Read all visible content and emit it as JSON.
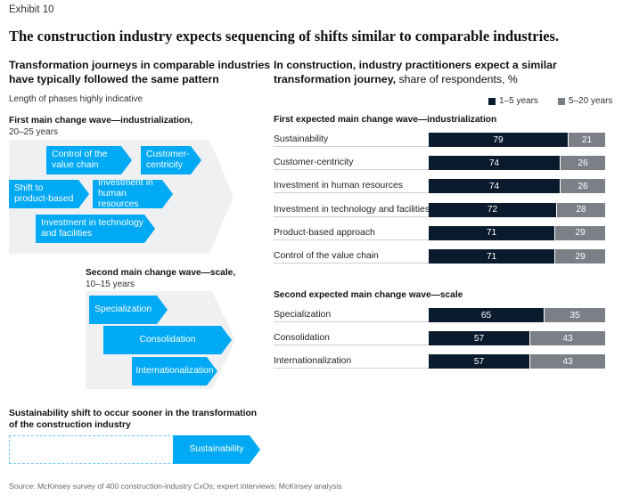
{
  "exhibit_label": "Exhibit 10",
  "headline": "The construction industry expects sequencing of shifts similar to comparable industries.",
  "left": {
    "heading_line1": "Transformation journeys in comparable industries",
    "heading_line2": "have typically followed the same pattern",
    "note": "Length of phases highly indicative",
    "wave1": {
      "title": "First main change wave—industrialization,",
      "subtitle": "20–25 years",
      "items": [
        {
          "line1": "Control of the",
          "line2": "value chain"
        },
        {
          "line1": "Customer-",
          "line2": "centricity"
        },
        {
          "line1": "Shift to",
          "line2": "product-based"
        },
        {
          "line1": "Investment in",
          "line2": "human resources"
        },
        {
          "line1": "Investment in technology",
          "line2": "and facilities"
        }
      ]
    },
    "wave2": {
      "title": "Second main change wave—scale,",
      "subtitle": "10–15 years",
      "items": [
        "Specialization",
        "Consolidation",
        "Internationalization"
      ]
    },
    "sustainability": {
      "heading_line1": "Sustainability shift to occur sooner in the transformation",
      "heading_line2": "of the construction industry",
      "item": "Sustainability"
    }
  },
  "right": {
    "heading_line1": "In construction, industry practitioners expect a similar",
    "heading_line2_bold": "transformation journey,",
    "heading_line2_rest": " share of respondents, %"
  },
  "source": "Source: McKinsey survey of 400 construction-industry CxOs; expert interviews; McKinsey analysis",
  "colors": {
    "accent": "#00a9f4",
    "dark": "#0a1b2e",
    "grey": "#7b8087",
    "chevron_bg": "#eef0f2"
  },
  "chart_data": {
    "type": "bar",
    "orientation": "horizontal",
    "stacked": true,
    "unit": "%",
    "legend": [
      {
        "name": "1–5 years",
        "color": "#0a1b2e"
      },
      {
        "name": "5–20 years",
        "color": "#7b8087"
      }
    ],
    "legend_position": "top-right",
    "groups": [
      {
        "title": "First expected main change wave—industrialization",
        "categories": [
          "Sustainability",
          "Customer-centricity",
          "Investment in human resources",
          "Investment in technology and facilities",
          "Product-based approach",
          "Control of the value chain"
        ],
        "series": [
          {
            "name": "1–5 years",
            "values": [
              79,
              74,
              74,
              72,
              71,
              71
            ]
          },
          {
            "name": "5–20 years",
            "values": [
              21,
              26,
              26,
              28,
              29,
              29
            ]
          }
        ]
      },
      {
        "title": "Second expected main change wave—scale",
        "categories": [
          "Specialization",
          "Consolidation",
          "Internationalization"
        ],
        "series": [
          {
            "name": "1–5 years",
            "values": [
              65,
              57,
              57
            ]
          },
          {
            "name": "5–20 years",
            "values": [
              35,
              43,
              43
            ]
          }
        ]
      }
    ]
  }
}
